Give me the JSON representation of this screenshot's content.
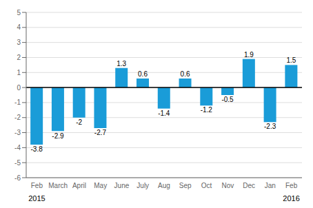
{
  "chart_data": {
    "type": "bar",
    "categories": [
      "Feb",
      "March",
      "April",
      "May",
      "June",
      "July",
      "Aug",
      "Sep",
      "Oct",
      "Nov",
      "Dec",
      "Jan",
      "Feb"
    ],
    "values": [
      -3.8,
      -2.9,
      -2.0,
      -2.7,
      1.3,
      0.6,
      -1.4,
      0.6,
      -1.2,
      -0.5,
      1.9,
      -2.3,
      1.5
    ],
    "color": "#1a9cd8",
    "ylim": [
      -6,
      5
    ],
    "yticks": [
      -6,
      -5,
      -4,
      -3,
      -2,
      -1,
      0,
      1,
      2,
      3,
      4,
      5
    ],
    "grid": true,
    "data_labels": true,
    "annotations": [
      {
        "text": "2015",
        "index": 0
      },
      {
        "text": "2016",
        "index": 12
      }
    ]
  }
}
